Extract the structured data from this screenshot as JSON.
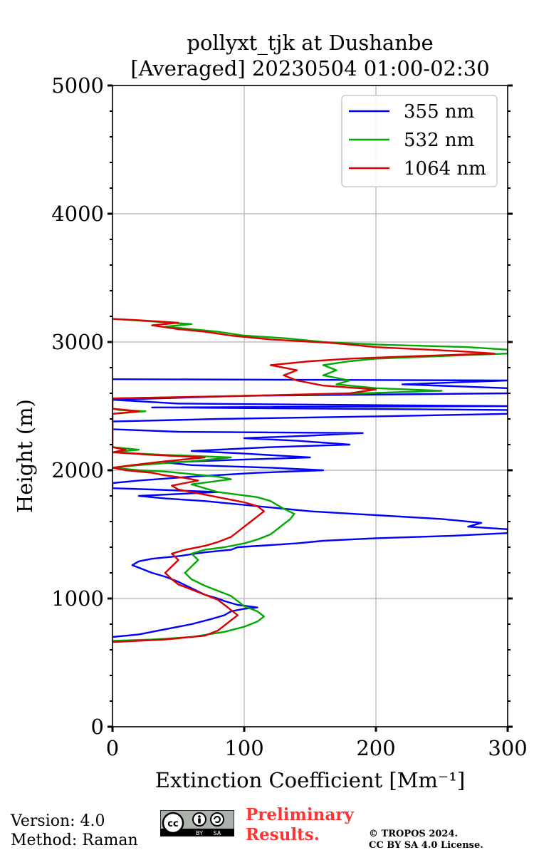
{
  "chart_data": {
    "type": "line",
    "title": "pollyxt_tjk at Dushanbe",
    "subtitle": "[Averaged] 20230504 01:00-02:30",
    "xlabel": "Extinction Coefficient [Mm⁻¹]",
    "ylabel": "Height (m)",
    "xlim": [
      0,
      300
    ],
    "ylim": [
      0,
      5000
    ],
    "xticks": [
      "0",
      "100",
      "200",
      "300"
    ],
    "yticks": [
      "0",
      "1000",
      "2000",
      "3000",
      "4000",
      "5000"
    ],
    "grid": true,
    "legend_position": "top-right",
    "series": [
      {
        "name": "355 nm",
        "color": "#0000ff",
        "points": [
          [
            0,
            700
          ],
          [
            20,
            720
          ],
          [
            40,
            760
          ],
          [
            60,
            800
          ],
          [
            75,
            840
          ],
          [
            85,
            870
          ],
          [
            90,
            900
          ],
          [
            100,
            920
          ],
          [
            110,
            930
          ],
          [
            95,
            950
          ],
          [
            85,
            980
          ],
          [
            80,
            1000
          ],
          [
            70,
            1030
          ],
          [
            60,
            1080
          ],
          [
            50,
            1130
          ],
          [
            40,
            1170
          ],
          [
            30,
            1200
          ],
          [
            20,
            1240
          ],
          [
            15,
            1260
          ],
          [
            20,
            1290
          ],
          [
            30,
            1310
          ],
          [
            50,
            1330
          ],
          [
            70,
            1360
          ],
          [
            90,
            1380
          ],
          [
            95,
            1400
          ],
          [
            140,
            1430
          ],
          [
            160,
            1450
          ],
          [
            200,
            1470
          ],
          [
            260,
            1490
          ],
          [
            300,
            1510
          ],
          [
            300,
            1540
          ],
          [
            270,
            1560
          ],
          [
            280,
            1590
          ],
          [
            250,
            1620
          ],
          [
            200,
            1650
          ],
          [
            150,
            1680
          ],
          [
            130,
            1700
          ],
          [
            110,
            1720
          ],
          [
            90,
            1740
          ],
          [
            70,
            1760
          ],
          [
            40,
            1780
          ],
          [
            20,
            1800
          ],
          [
            80,
            1830
          ],
          [
            30,
            1850
          ],
          [
            0,
            1860
          ],
          [
            0,
            1900
          ],
          [
            20,
            1920
          ],
          [
            60,
            1950
          ],
          [
            110,
            1980
          ],
          [
            160,
            2000
          ],
          [
            120,
            2020
          ],
          [
            60,
            2040
          ],
          [
            40,
            2060
          ],
          [
            90,
            2080
          ],
          [
            150,
            2100
          ],
          [
            100,
            2130
          ],
          [
            60,
            2150
          ],
          [
            120,
            2180
          ],
          [
            180,
            2200
          ],
          [
            140,
            2230
          ],
          [
            100,
            2250
          ],
          [
            150,
            2270
          ],
          [
            190,
            2290
          ],
          [
            50,
            2300
          ],
          [
            0,
            2320
          ],
          [
            0,
            2380
          ],
          [
            80,
            2400
          ],
          [
            200,
            2420
          ],
          [
            300,
            2440
          ],
          [
            300,
            2470
          ],
          [
            30,
            2490
          ],
          [
            300,
            2500
          ],
          [
            50,
            2520
          ],
          [
            0,
            2550
          ],
          [
            100,
            2580
          ],
          [
            300,
            2600
          ],
          [
            300,
            2640
          ],
          [
            220,
            2670
          ],
          [
            300,
            2700
          ],
          [
            0,
            2710
          ]
        ]
      },
      {
        "name": "532 nm",
        "color": "#00aa00",
        "points": [
          [
            0,
            670
          ],
          [
            30,
            680
          ],
          [
            60,
            700
          ],
          [
            85,
            740
          ],
          [
            100,
            780
          ],
          [
            110,
            820
          ],
          [
            115,
            860
          ],
          [
            110,
            900
          ],
          [
            100,
            940
          ],
          [
            95,
            980
          ],
          [
            90,
            1020
          ],
          [
            80,
            1060
          ],
          [
            70,
            1100
          ],
          [
            60,
            1150
          ],
          [
            55,
            1200
          ],
          [
            60,
            1250
          ],
          [
            65,
            1300
          ],
          [
            60,
            1350
          ],
          [
            70,
            1380
          ],
          [
            85,
            1400
          ],
          [
            100,
            1430
          ],
          [
            110,
            1460
          ],
          [
            120,
            1500
          ],
          [
            125,
            1540
          ],
          [
            130,
            1580
          ],
          [
            135,
            1620
          ],
          [
            138,
            1660
          ],
          [
            130,
            1700
          ],
          [
            125,
            1730
          ],
          [
            120,
            1760
          ],
          [
            110,
            1790
          ],
          [
            95,
            1810
          ],
          [
            80,
            1830
          ],
          [
            70,
            1860
          ],
          [
            60,
            1890
          ],
          [
            75,
            1910
          ],
          [
            90,
            1930
          ],
          [
            80,
            1950
          ],
          [
            60,
            1970
          ],
          [
            40,
            1990
          ],
          [
            20,
            2000
          ],
          [
            0,
            2020
          ],
          [
            20,
            2040
          ],
          [
            60,
            2070
          ],
          [
            90,
            2100
          ],
          [
            40,
            2120
          ],
          [
            0,
            2140
          ],
          [
            20,
            2160
          ],
          [
            0,
            2180
          ],
          [
            0,
            2440
          ],
          [
            25,
            2460
          ],
          [
            5,
            2470
          ],
          [
            0,
            2480
          ],
          [
            0,
            2560
          ],
          [
            100,
            2580
          ],
          [
            190,
            2600
          ],
          [
            250,
            2620
          ],
          [
            200,
            2640
          ],
          [
            170,
            2670
          ],
          [
            180,
            2700
          ],
          [
            160,
            2740
          ],
          [
            170,
            2780
          ],
          [
            160,
            2820
          ],
          [
            180,
            2850
          ],
          [
            200,
            2870
          ],
          [
            250,
            2890
          ],
          [
            300,
            2910
          ],
          [
            300,
            2940
          ],
          [
            270,
            2960
          ],
          [
            200,
            2980
          ],
          [
            160,
            3000
          ],
          [
            130,
            3030
          ],
          [
            100,
            3050
          ],
          [
            80,
            3080
          ],
          [
            60,
            3100
          ],
          [
            40,
            3120
          ],
          [
            60,
            3140
          ],
          [
            30,
            3160
          ],
          [
            0,
            3180
          ]
        ]
      },
      {
        "name": "1064 nm",
        "color": "#dd0000",
        "points": [
          [
            0,
            660
          ],
          [
            40,
            680
          ],
          [
            70,
            710
          ],
          [
            80,
            750
          ],
          [
            85,
            790
          ],
          [
            90,
            830
          ],
          [
            95,
            870
          ],
          [
            90,
            910
          ],
          [
            85,
            950
          ],
          [
            80,
            990
          ],
          [
            70,
            1030
          ],
          [
            60,
            1070
          ],
          [
            50,
            1110
          ],
          [
            45,
            1150
          ],
          [
            40,
            1200
          ],
          [
            45,
            1250
          ],
          [
            50,
            1300
          ],
          [
            45,
            1350
          ],
          [
            55,
            1380
          ],
          [
            70,
            1410
          ],
          [
            80,
            1440
          ],
          [
            90,
            1480
          ],
          [
            95,
            1520
          ],
          [
            100,
            1560
          ],
          [
            105,
            1600
          ],
          [
            110,
            1640
          ],
          [
            115,
            1680
          ],
          [
            110,
            1720
          ],
          [
            100,
            1750
          ],
          [
            90,
            1770
          ],
          [
            80,
            1790
          ],
          [
            70,
            1810
          ],
          [
            60,
            1830
          ],
          [
            50,
            1850
          ],
          [
            45,
            1880
          ],
          [
            55,
            1900
          ],
          [
            65,
            1920
          ],
          [
            55,
            1940
          ],
          [
            40,
            1960
          ],
          [
            30,
            1980
          ],
          [
            10,
            2000
          ],
          [
            0,
            2020
          ],
          [
            15,
            2040
          ],
          [
            40,
            2070
          ],
          [
            70,
            2100
          ],
          [
            30,
            2120
          ],
          [
            0,
            2140
          ],
          [
            10,
            2160
          ],
          [
            0,
            2180
          ],
          [
            0,
            2440
          ],
          [
            20,
            2460
          ],
          [
            0,
            2480
          ],
          [
            0,
            2560
          ],
          [
            100,
            2580
          ],
          [
            180,
            2600
          ],
          [
            200,
            2630
          ],
          [
            160,
            2660
          ],
          [
            140,
            2700
          ],
          [
            130,
            2740
          ],
          [
            140,
            2780
          ],
          [
            120,
            2820
          ],
          [
            150,
            2850
          ],
          [
            180,
            2870
          ],
          [
            230,
            2890
          ],
          [
            290,
            2910
          ],
          [
            260,
            2930
          ],
          [
            200,
            2960
          ],
          [
            170,
            2990
          ],
          [
            120,
            3020
          ],
          [
            90,
            3050
          ],
          [
            70,
            3080
          ],
          [
            50,
            3100
          ],
          [
            30,
            3130
          ],
          [
            50,
            3150
          ],
          [
            20,
            3170
          ],
          [
            0,
            3180
          ]
        ]
      }
    ]
  },
  "footer": {
    "version": "Version: 4.0",
    "method": "Method: Raman",
    "preliminary_line1": "Preliminary",
    "preliminary_line2": "Results.",
    "copyright_line1": "© TROPOS 2024.",
    "copyright_line2": "CC BY SA 4.0 License.",
    "badge_cc": "cc",
    "badge_by": "BY",
    "badge_sa": "SA",
    "preliminary_color": "#ff3333"
  }
}
